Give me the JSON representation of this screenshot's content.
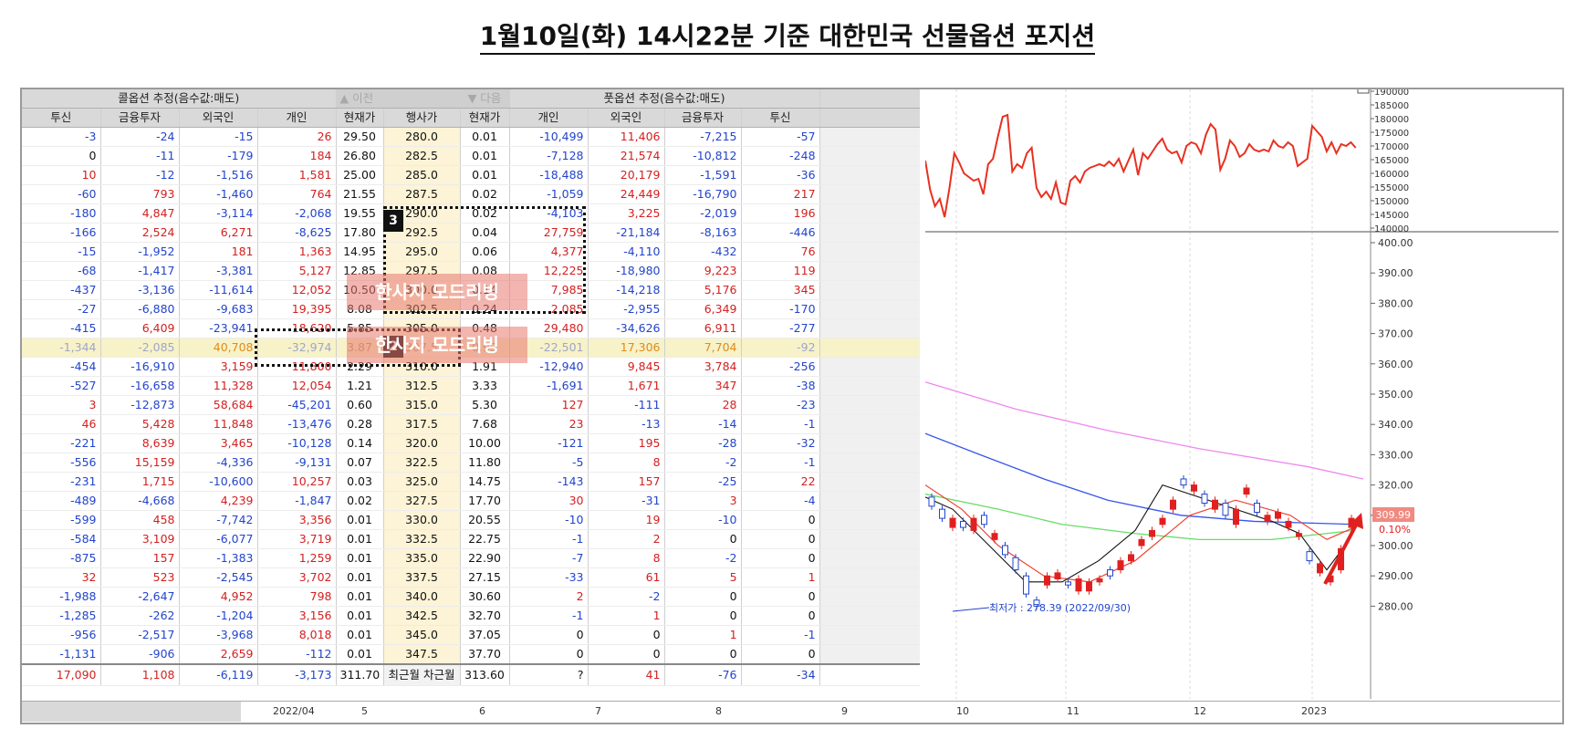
{
  "title": "1월10일(화) 14시22분 기준 대한민국 선물옵션 포지션",
  "table": {
    "call_group": "콜옵션 추정(음수값:매도)",
    "put_group": "풋옵션 추정(음수값:매도)",
    "prev_button": "▲ 이전",
    "next_button": "▼ 다음",
    "columns": [
      "투신",
      "금융투자",
      "외국인",
      "개인",
      "현재가",
      "행사가",
      "현재가",
      "개인",
      "외국인",
      "금융투자",
      "투신"
    ],
    "rows": [
      [
        "-3",
        "-24",
        "-15",
        "26",
        "29.50",
        "280.0",
        "0.01",
        "-10,499",
        "11,406",
        "-7,215",
        "-57"
      ],
      [
        "0",
        "-11",
        "-179",
        "184",
        "26.80",
        "282.5",
        "0.01",
        "-7,128",
        "21,574",
        "-10,812",
        "-248"
      ],
      [
        "10",
        "-12",
        "-1,516",
        "1,581",
        "25.00",
        "285.0",
        "0.01",
        "-18,488",
        "20,179",
        "-1,591",
        "-36"
      ],
      [
        "-60",
        "793",
        "-1,460",
        "764",
        "21.55",
        "287.5",
        "0.02",
        "-1,059",
        "24,449",
        "-16,790",
        "217"
      ],
      [
        "-180",
        "4,847",
        "-3,114",
        "-2,068",
        "19.55",
        "290.0",
        "0.02",
        "-4,103",
        "3,225",
        "-2,019",
        "196"
      ],
      [
        "-166",
        "2,524",
        "6,271",
        "-8,625",
        "17.80",
        "292.5",
        "0.04",
        "27,759",
        "-21,184",
        "-8,163",
        "-446"
      ],
      [
        "-15",
        "-1,952",
        "181",
        "1,363",
        "14.95",
        "295.0",
        "0.06",
        "4,377",
        "-4,110",
        "-432",
        "76"
      ],
      [
        "-68",
        "-1,417",
        "-3,381",
        "5,127",
        "12.85",
        "297.5",
        "0.08",
        "12,225",
        "-18,980",
        "9,223",
        "119"
      ],
      [
        "-437",
        "-3,136",
        "-11,614",
        "12,052",
        "10.50",
        "300.0",
        "0.14",
        "7,985",
        "-14,218",
        "5,176",
        "345"
      ],
      [
        "-27",
        "-6,880",
        "-9,683",
        "19,395",
        "8.08",
        "302.5",
        "0.24",
        "2,085",
        "-2,955",
        "6,349",
        "-170"
      ],
      [
        "-415",
        "6,409",
        "-23,941",
        "18,620",
        "5.85",
        "305.0",
        "0.48",
        "29,480",
        "-34,626",
        "6,911",
        "-277"
      ],
      [
        "-1,344",
        "-2,085",
        "40,708",
        "-32,974",
        "3.87",
        "307.5",
        "0.99",
        "-22,501",
        "17,306",
        "7,704",
        "-92"
      ],
      [
        "-454",
        "-16,910",
        "3,159",
        "11,800",
        "2.29",
        "310.0",
        "1.91",
        "-12,940",
        "9,845",
        "3,784",
        "-256"
      ],
      [
        "-527",
        "-16,658",
        "11,328",
        "12,054",
        "1.21",
        "312.5",
        "3.33",
        "-1,691",
        "1,671",
        "347",
        "-38"
      ],
      [
        "3",
        "-12,873",
        "58,684",
        "-45,201",
        "0.60",
        "315.0",
        "5.30",
        "127",
        "-111",
        "28",
        "-23"
      ],
      [
        "46",
        "5,428",
        "11,848",
        "-13,476",
        "0.28",
        "317.5",
        "7.68",
        "23",
        "-13",
        "-14",
        "-1"
      ],
      [
        "-221",
        "8,639",
        "3,465",
        "-10,128",
        "0.14",
        "320.0",
        "10.00",
        "-121",
        "195",
        "-28",
        "-32"
      ],
      [
        "-556",
        "15,159",
        "-4,336",
        "-9,131",
        "0.07",
        "322.5",
        "11.80",
        "-5",
        "8",
        "-2",
        "-1"
      ],
      [
        "-231",
        "1,715",
        "-10,600",
        "10,257",
        "0.03",
        "325.0",
        "14.75",
        "-143",
        "157",
        "-25",
        "22"
      ],
      [
        "-489",
        "-4,668",
        "4,239",
        "-1,847",
        "0.02",
        "327.5",
        "17.70",
        "30",
        "-31",
        "3",
        "-4"
      ],
      [
        "-599",
        "458",
        "-7,742",
        "3,356",
        "0.01",
        "330.0",
        "20.55",
        "-10",
        "19",
        "-10",
        "0"
      ],
      [
        "-584",
        "3,109",
        "-6,077",
        "3,719",
        "0.01",
        "332.5",
        "22.75",
        "-1",
        "2",
        "0",
        "0"
      ],
      [
        "-875",
        "157",
        "-1,383",
        "1,259",
        "0.01",
        "335.0",
        "22.90",
        "-7",
        "8",
        "-2",
        "0"
      ],
      [
        "32",
        "523",
        "-2,545",
        "3,702",
        "0.01",
        "337.5",
        "27.15",
        "-33",
        "61",
        "5",
        "1"
      ],
      [
        "-1,988",
        "-2,647",
        "4,952",
        "798",
        "0.01",
        "340.0",
        "30.60",
        "2",
        "-2",
        "0",
        "0"
      ],
      [
        "-1,285",
        "-262",
        "-1,204",
        "3,156",
        "0.01",
        "342.5",
        "32.70",
        "-1",
        "1",
        "0",
        "0"
      ],
      [
        "-956",
        "-2,517",
        "-3,968",
        "8,018",
        "0.01",
        "345.0",
        "37.05",
        "0",
        "0",
        "1",
        "-1"
      ],
      [
        "-1,131",
        "-906",
        "2,659",
        "-112",
        "0.01",
        "347.5",
        "37.70",
        "0",
        "0",
        "0",
        "0"
      ]
    ],
    "totals": [
      "17,090",
      "1,108",
      "-6,119",
      "-3,173",
      "311.70",
      "최근월",
      "차근월",
      "313.60",
      "?",
      "41",
      "-76",
      "-34"
    ]
  },
  "watermark": "한사지 모드리빙",
  "badges": {
    "b1": "1",
    "b2": "2",
    "b3": "3"
  },
  "chart": {
    "top_axis": [
      "190000",
      "185000",
      "180000",
      "175000",
      "170000",
      "165000",
      "160000",
      "155000",
      "150000",
      "145000",
      "140000"
    ],
    "main_axis": [
      "400.00",
      "390.00",
      "380.00",
      "370.00",
      "360.00",
      "350.00",
      "340.00",
      "330.00",
      "320.00",
      "310.00",
      "300.00",
      "290.00",
      "280.00"
    ],
    "price_label": "309.99",
    "pct_label": "0.10%",
    "low_annotation": "최저가 : 278.39 (2022/09/30)",
    "x_labels": [
      "9",
      "10",
      "11",
      "12",
      "2023"
    ],
    "bottom_left_date": "2022/04",
    "bottom_left_ticks": [
      "5",
      "6",
      "7",
      "8"
    ],
    "colors": {
      "up": "#e02020",
      "down": "#2244cc",
      "ma_pink": "#ee88ee",
      "ma_blue": "#3355ee",
      "ma_green": "#66dd66",
      "ma_red": "#ee4433",
      "ma_black": "#111111"
    }
  }
}
